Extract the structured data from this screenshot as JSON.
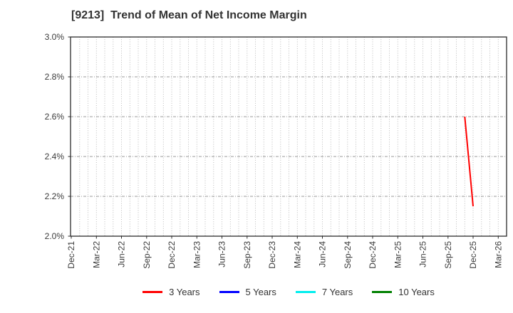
{
  "chart_data": {
    "type": "line",
    "title": "[9213]  Trend of Mean of Net Income Margin",
    "x_axis": {
      "tick_labels": [
        "Dec-21",
        "Mar-22",
        "Jun-22",
        "Sep-22",
        "Dec-22",
        "Mar-23",
        "Jun-23",
        "Sep-23",
        "Dec-23",
        "Mar-24",
        "Jun-24",
        "Sep-24",
        "Dec-24",
        "Mar-25",
        "Jun-25",
        "Sep-25",
        "Dec-25",
        "Mar-26"
      ],
      "months_per_tick": 3,
      "total_months_span": 52,
      "minor_gridlines": "monthly-dotted"
    },
    "y_axis": {
      "tick_labels": [
        "3.0%",
        "2.8%",
        "2.6%",
        "2.4%",
        "2.2%",
        "2.0%"
      ],
      "min": 2.0,
      "max": 3.0,
      "step": 0.2,
      "unit": "%"
    },
    "grid": {
      "vertical": "dotted",
      "horizontal": "dash-dot"
    },
    "series": [
      {
        "name": "3 Years",
        "color": "#ff0000",
        "points": [
          {
            "x": "Nov-25",
            "month_index": 47,
            "value": 2.6
          },
          {
            "x": "Dec-25",
            "month_index": 48,
            "value": 2.15
          }
        ]
      },
      {
        "name": "5 Years",
        "color": "#0000ff",
        "points": []
      },
      {
        "name": "7 Years",
        "color": "#00eeee",
        "points": []
      },
      {
        "name": "10 Years",
        "color": "#008000",
        "points": []
      }
    ],
    "legend": {
      "position": "bottom"
    }
  }
}
